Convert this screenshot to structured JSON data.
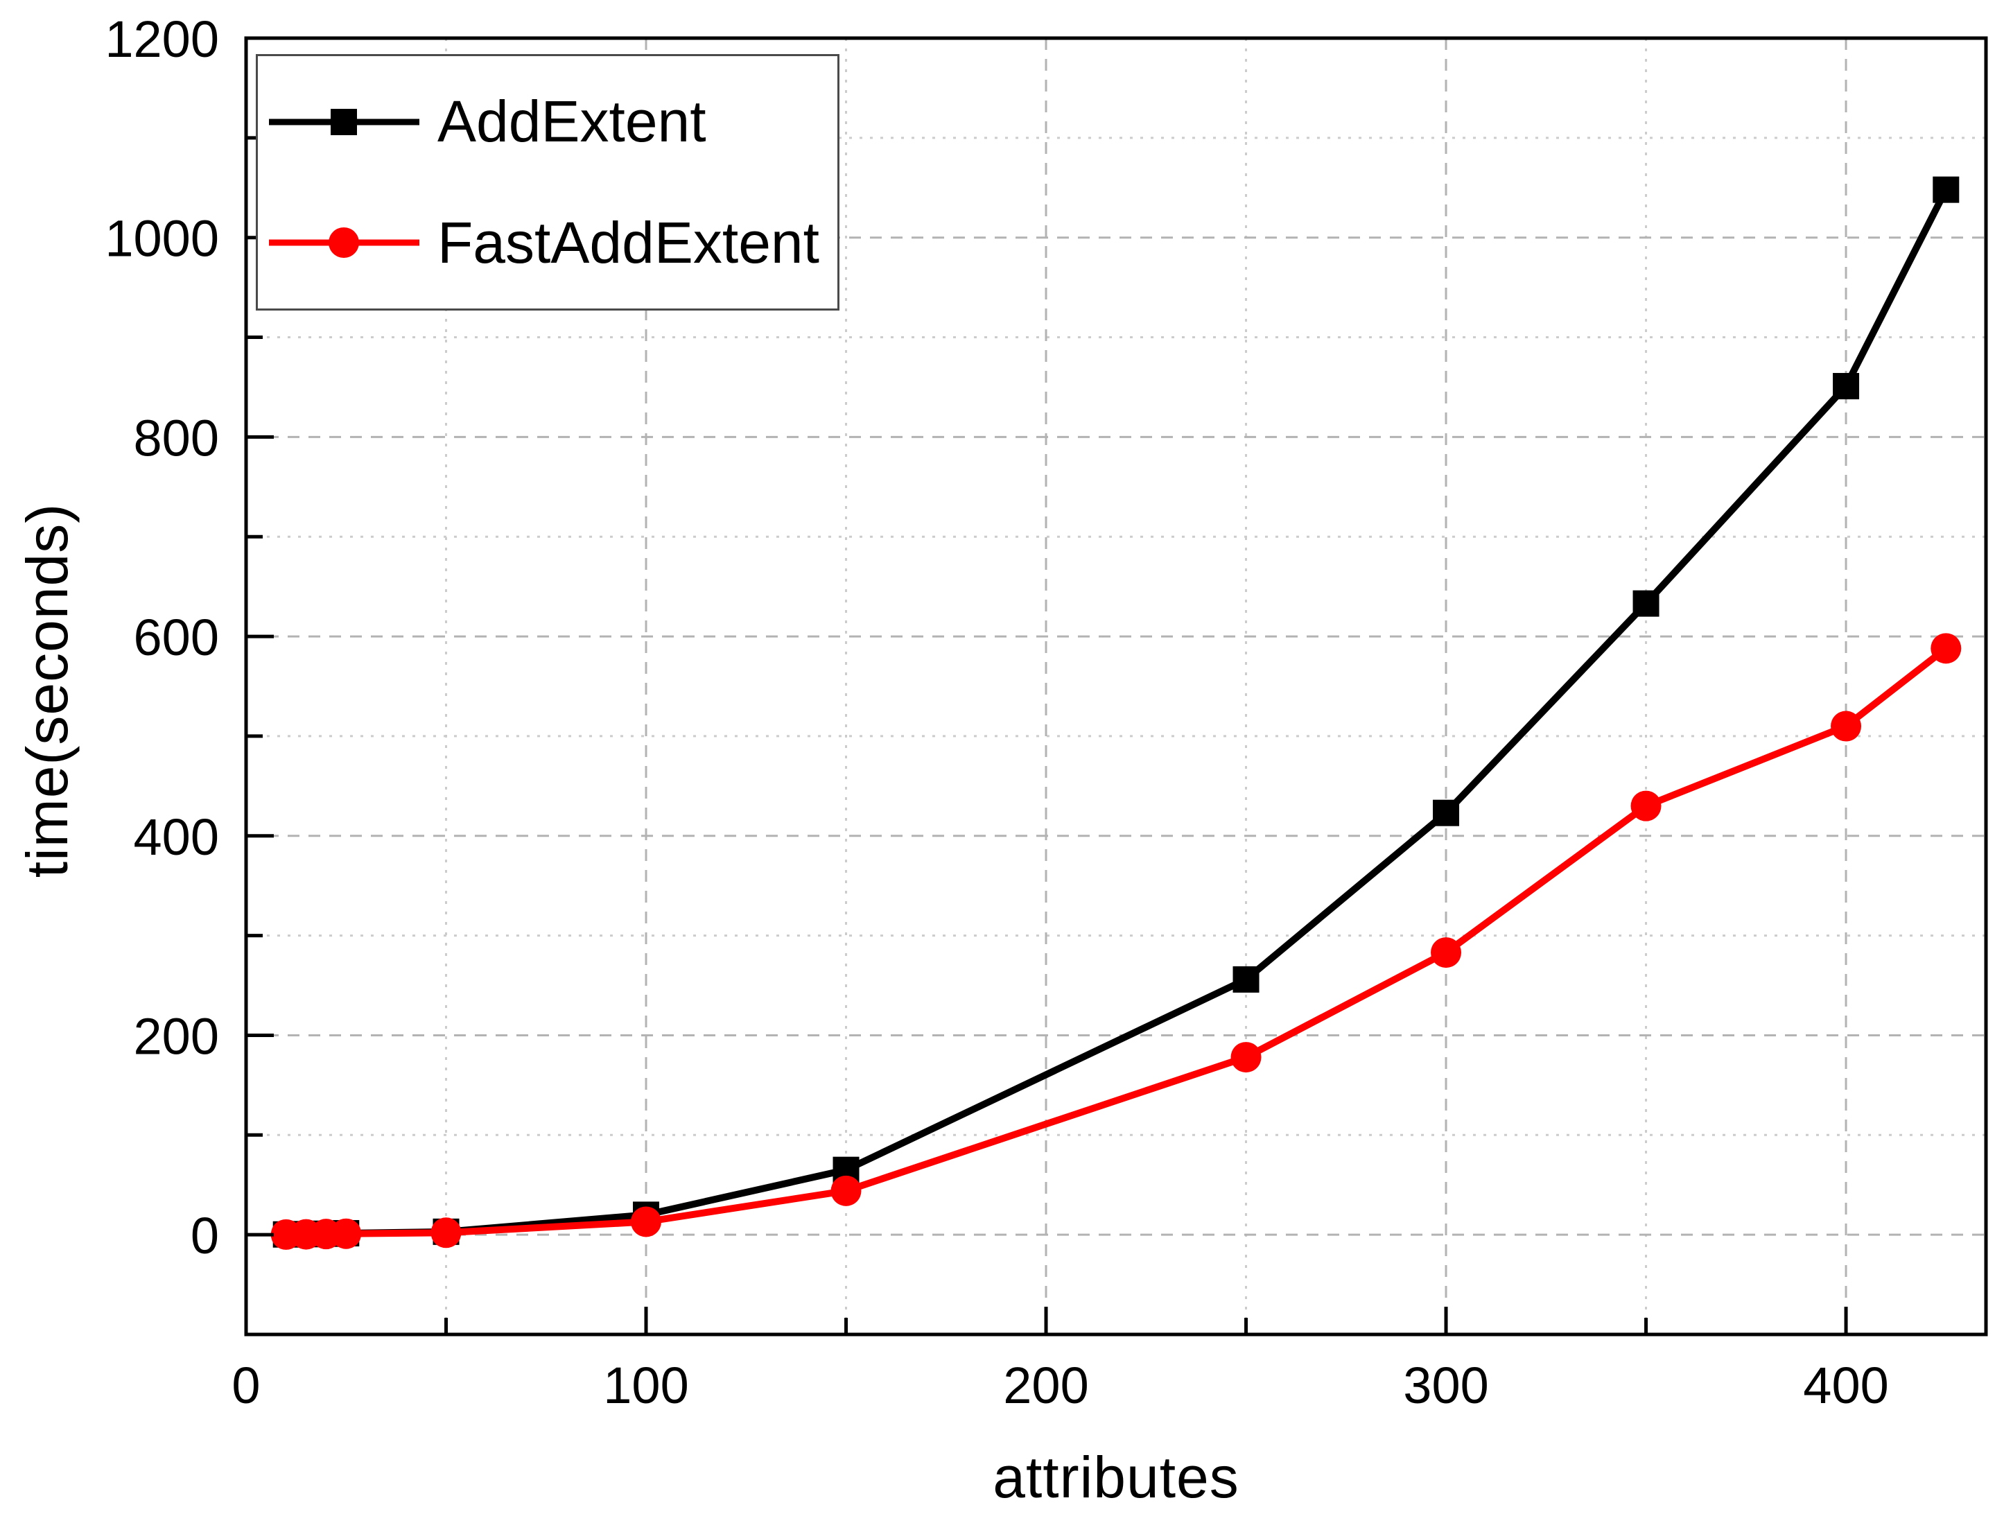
{
  "figure": {
    "background": "#ffffff",
    "frame_color": "#000000"
  },
  "chart_data": {
    "type": "line",
    "xlabel": "attributes",
    "ylabel": "time(seconds)",
    "x": [
      10,
      15,
      20,
      25,
      50,
      100,
      150,
      250,
      300,
      350,
      400,
      425
    ],
    "series": [
      {
        "name": "AddExtent",
        "color": "#000000",
        "marker": "square",
        "values": [
          0.3,
          0.6,
          1.0,
          1.5,
          3,
          20,
          65,
          256,
          423,
          633,
          851,
          1048
        ]
      },
      {
        "name": "FastAddExtent",
        "color": "#ff0000",
        "marker": "circle",
        "values": [
          0.2,
          0.4,
          0.7,
          1.0,
          2,
          13,
          44,
          178,
          283,
          430,
          510,
          588
        ]
      }
    ],
    "xlim": [
      0,
      435
    ],
    "ylim": [
      -100,
      1200
    ],
    "x_major_ticks": [
      0,
      100,
      200,
      300,
      400
    ],
    "x_minor_ticks": [
      50,
      150,
      250,
      350
    ],
    "y_major_ticks": [
      0,
      200,
      400,
      600,
      800,
      1000,
      1200
    ],
    "y_minor_ticks": [
      100,
      300,
      500,
      700,
      900,
      1100
    ],
    "grid": true,
    "grid_major_style": "dashed",
    "grid_minor_style": "dotted",
    "grid_major_color": "#b3b3b3",
    "grid_minor_color": "#cccccc",
    "legend_position": "top-left"
  }
}
